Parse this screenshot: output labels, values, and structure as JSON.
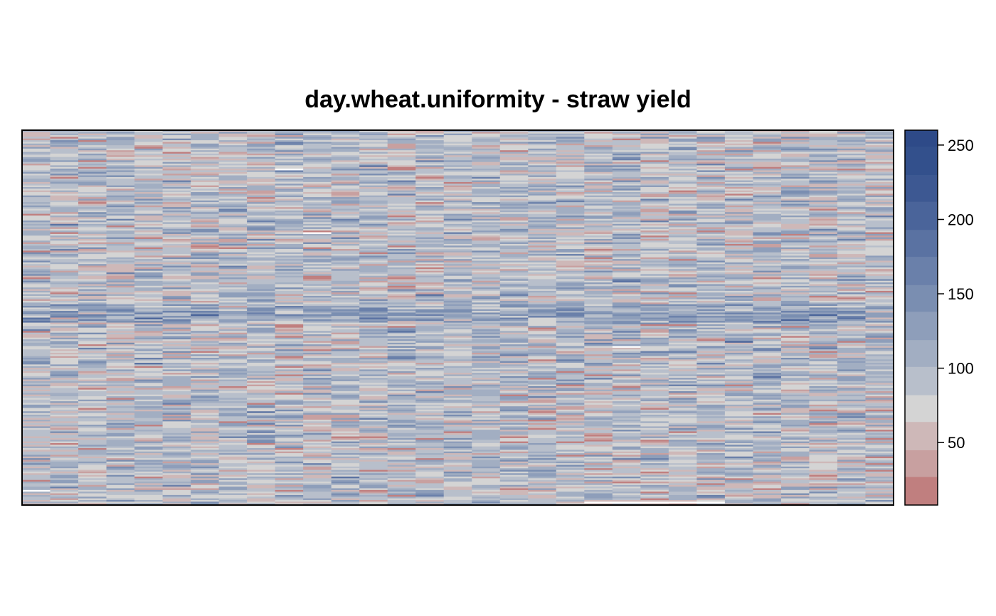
{
  "chart_data": {
    "type": "heatmap",
    "title": "day.wheat.uniformity - straw yield",
    "xlabel": "",
    "ylabel": "",
    "n_columns": 31,
    "n_rows": 224,
    "value_range": [
      8,
      260
    ],
    "grid": false,
    "legend_placement": "right",
    "colorbar": {
      "breaks": [
        8,
        27,
        45,
        64,
        82,
        101,
        119,
        138,
        156,
        175,
        193,
        212,
        230,
        249,
        260
      ],
      "colors": [
        "#c07f7f",
        "#c8a0a0",
        "#ceb8b8",
        "#d4d4d4",
        "#b8bfcb",
        "#a2aec2",
        "#8e9eba",
        "#7a8eb1",
        "#6a80aa",
        "#5a72a2",
        "#4a649a",
        "#3d5892",
        "#33508c",
        "#2e4a88"
      ],
      "tick_labels": [
        "50",
        "100",
        "150",
        "200",
        "250"
      ],
      "tick_values": [
        50,
        100,
        150,
        200,
        250
      ]
    },
    "missing_cells": [
      {
        "col": 0,
        "row": 215
      },
      {
        "col": 9,
        "row": 23
      },
      {
        "col": 10,
        "row": 61
      },
      {
        "col": 21,
        "row": 129
      },
      {
        "col": 20,
        "row": 222
      },
      {
        "col": 21,
        "row": 222
      },
      {
        "col": 22,
        "row": 222
      },
      {
        "col": 23,
        "row": 222
      },
      {
        "col": 24,
        "row": 222
      }
    ],
    "distribution": {
      "mean": 88,
      "sd": 30,
      "seed": 20240611
    }
  }
}
